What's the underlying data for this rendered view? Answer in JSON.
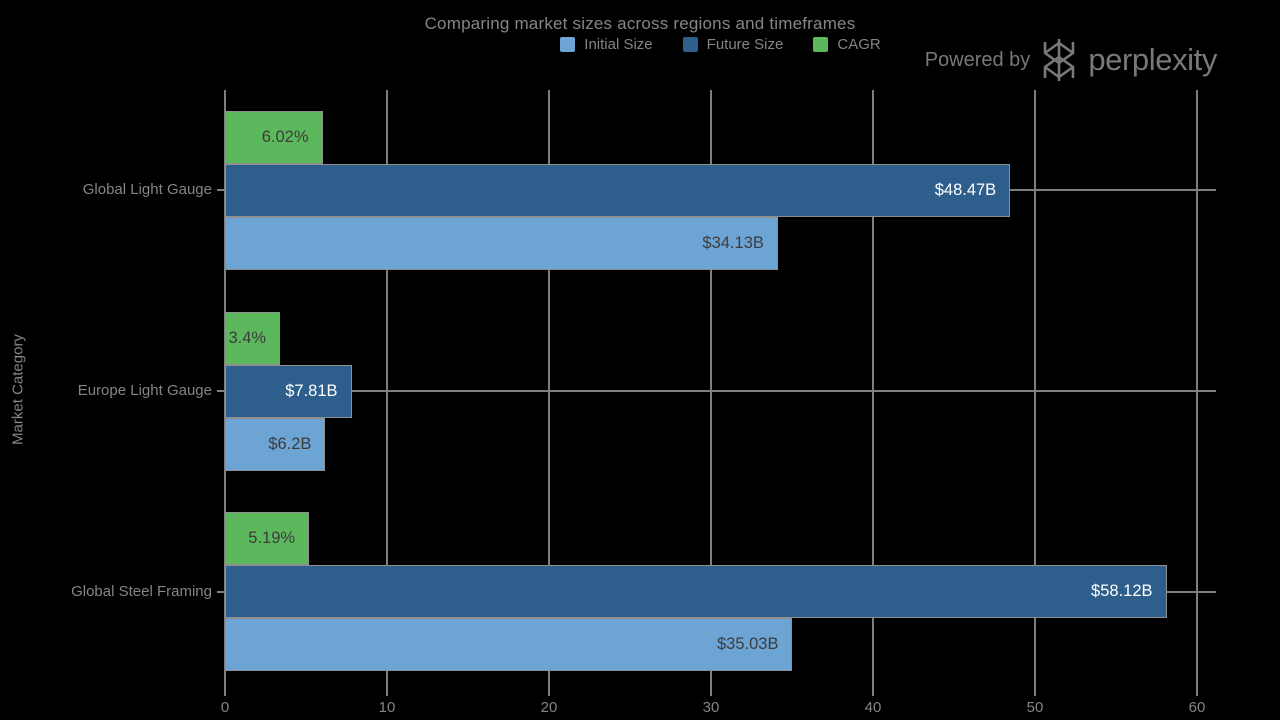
{
  "title": "Comparing market sizes across regions and timeframes",
  "branding": {
    "powered_by": "Powered by",
    "brand": "perplexity"
  },
  "colors": {
    "background": "#000000",
    "grid": "#7f7f7f",
    "text": "#858585",
    "brand_gray": "#77787B",
    "bar_border": "#8f8f8f"
  },
  "chart_data": {
    "type": "bar",
    "orientation": "horizontal",
    "title": "Comparing market sizes across regions and timeframes",
    "xlabel": "",
    "ylabel": "Market Category",
    "categories": [
      "Global Light Gauge",
      "Europe Light Gauge",
      "Global Steel Framing"
    ],
    "series": [
      {
        "name": "Initial Size",
        "color": "#6CA4D4",
        "label_color": "#3C3C3C",
        "values": [
          34.13,
          6.2,
          35.03
        ],
        "labels": [
          "$34.13B",
          "$6.2B",
          "$35.03B"
        ]
      },
      {
        "name": "Future Size",
        "color": "#2E5F8C",
        "label_color": "#FFFFFF",
        "values": [
          48.47,
          7.81,
          58.12
        ],
        "labels": [
          "$48.47B",
          "$7.81B",
          "$58.12B"
        ]
      },
      {
        "name": "CAGR",
        "color": "#5CB85C",
        "label_color": "#3C3C3C",
        "values": [
          6.02,
          3.4,
          5.19
        ],
        "labels": [
          "6.02%",
          "3.4%",
          "5.19%"
        ]
      }
    ],
    "x_ticks": [
      0,
      10,
      20,
      30,
      40,
      50,
      60
    ],
    "xlim": [
      0,
      61.2
    ],
    "grid": true,
    "legend_position": "top-center"
  }
}
